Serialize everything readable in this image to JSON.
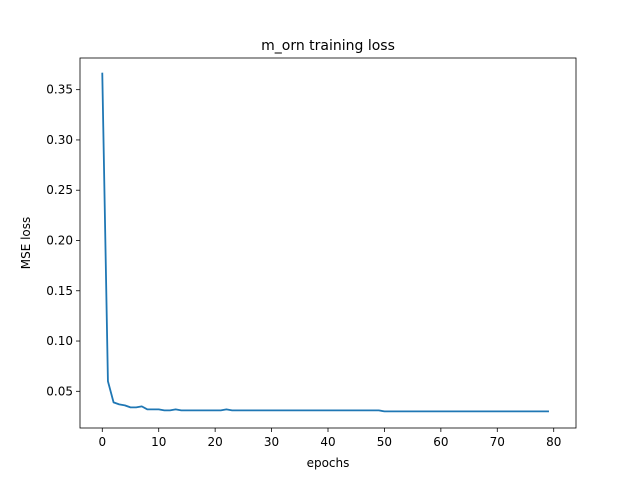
{
  "chart_data": {
    "type": "line",
    "title": "m_orn training loss",
    "xlabel": "epochs",
    "ylabel": "MSE loss",
    "xlim": [
      -3.95,
      83.95
    ],
    "ylim": [
      0.0135,
      0.3815
    ],
    "xticks": [
      0,
      10,
      20,
      30,
      40,
      50,
      60,
      70,
      80
    ],
    "yticks": [
      0.05,
      0.1,
      0.15,
      0.2,
      0.25,
      0.3,
      0.35
    ],
    "xtick_labels": [
      "0",
      "10",
      "20",
      "30",
      "40",
      "50",
      "60",
      "70",
      "80"
    ],
    "ytick_labels": [
      "0.05",
      "0.10",
      "0.15",
      "0.20",
      "0.25",
      "0.30",
      "0.35"
    ],
    "grid": false,
    "line_color": "#1f77b4",
    "series": [
      {
        "x": [
          0,
          1,
          2,
          3,
          4,
          5,
          6,
          7,
          8,
          9,
          10,
          11,
          12,
          13,
          14,
          15,
          16,
          17,
          18,
          19,
          20,
          21,
          22,
          23,
          24,
          25,
          26,
          27,
          28,
          29,
          30,
          31,
          32,
          33,
          34,
          35,
          36,
          37,
          38,
          39,
          40,
          41,
          42,
          43,
          44,
          45,
          46,
          47,
          48,
          49,
          50,
          51,
          52,
          53,
          54,
          55,
          56,
          57,
          58,
          59,
          60,
          61,
          62,
          63,
          64,
          65,
          66,
          67,
          68,
          69,
          70,
          71,
          72,
          73,
          74,
          75,
          76,
          77,
          78,
          79
        ],
        "values": [
          0.366,
          0.06,
          0.039,
          0.037,
          0.036,
          0.034,
          0.034,
          0.035,
          0.032,
          0.032,
          0.032,
          0.031,
          0.031,
          0.032,
          0.031,
          0.031,
          0.031,
          0.031,
          0.031,
          0.031,
          0.031,
          0.031,
          0.032,
          0.031,
          0.031,
          0.031,
          0.031,
          0.031,
          0.031,
          0.031,
          0.031,
          0.031,
          0.031,
          0.031,
          0.031,
          0.031,
          0.031,
          0.031,
          0.031,
          0.031,
          0.031,
          0.031,
          0.031,
          0.031,
          0.031,
          0.031,
          0.031,
          0.031,
          0.031,
          0.031,
          0.03,
          0.03,
          0.03,
          0.03,
          0.03,
          0.03,
          0.03,
          0.03,
          0.03,
          0.03,
          0.03,
          0.03,
          0.03,
          0.03,
          0.03,
          0.03,
          0.03,
          0.03,
          0.03,
          0.03,
          0.03,
          0.03,
          0.03,
          0.03,
          0.03,
          0.03,
          0.03,
          0.03,
          0.03,
          0.03
        ]
      }
    ]
  }
}
